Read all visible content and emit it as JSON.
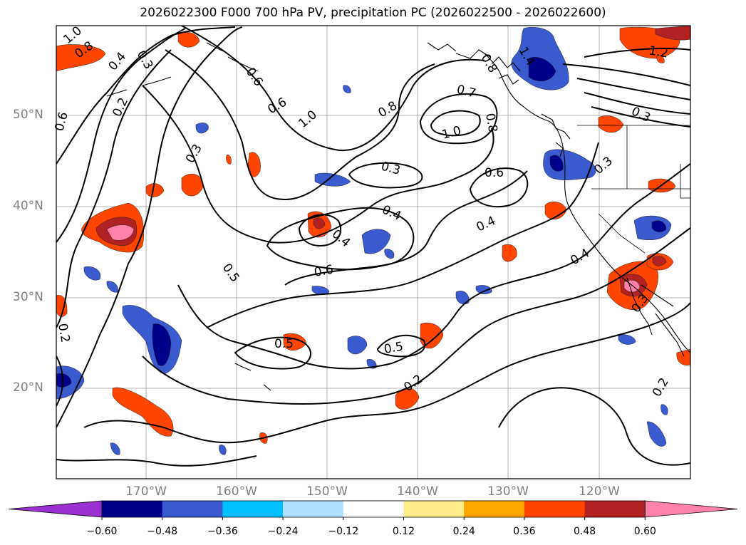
{
  "title": "2026022300 F000 700 hPa PV, precipitation PC (2026022500 - 2026022600)",
  "lat_labels": [
    "50°N",
    "40°N",
    "30°N",
    "20°N"
  ],
  "lon_labels": [
    "170°W",
    "160°W",
    "150°W",
    "140°W",
    "130°W",
    "120°W"
  ],
  "colorbar": {
    "ticks": [
      "−0.60",
      "−0.48",
      "−0.36",
      "−0.24",
      "−0.12",
      "0.12",
      "0.24",
      "0.36",
      "0.48",
      "0.60"
    ],
    "colors": [
      "#9b30d0",
      "#00008b",
      "#3a5bd0",
      "#00bfff",
      "#b0e2ff",
      "#ffffff",
      "#ffec8b",
      "#ffa500",
      "#ff4500",
      "#b22222",
      "#ff82ab"
    ]
  },
  "contour_labels": [
    "1.0",
    "0.8",
    "0.4",
    "0.2",
    "0.6",
    "0.6",
    "0.3",
    "1.0",
    "0.6",
    "0.8",
    "0.7",
    "0.8",
    "1.0",
    "1.4",
    "0.8",
    "0.3",
    "0.6",
    "0.3",
    "0.4",
    "0.4",
    "0.4",
    "0.5",
    "0.6",
    "0.4",
    "0.3",
    "1.2",
    "0.3",
    "0.2",
    "0.5",
    "0.5",
    "0.2",
    "0.2",
    "0.3"
  ],
  "colors": {
    "grid": "#b0b0b0",
    "contour": "#000000",
    "coast": "#000000",
    "tick_text": "#808080"
  }
}
